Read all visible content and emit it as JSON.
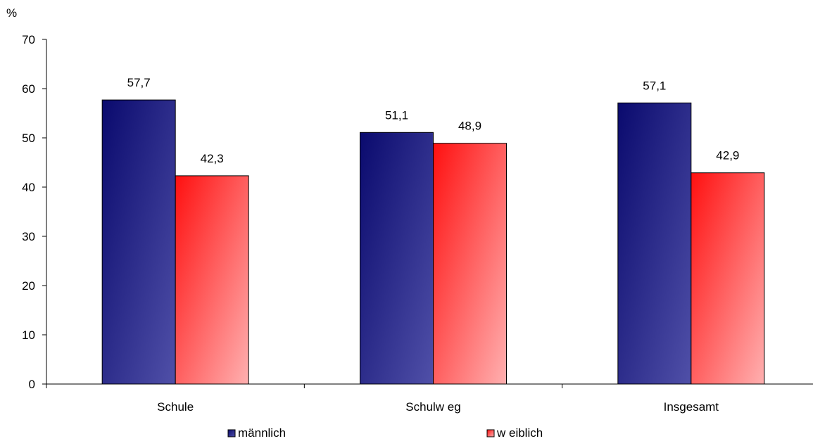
{
  "chart_data": {
    "type": "bar",
    "unit_label": "%",
    "categories": [
      "Schule",
      "Schulw eg",
      "Insgesamt"
    ],
    "series": [
      {
        "name": "männlich",
        "values": [
          57.7,
          51.1,
          57.1
        ],
        "labels": [
          "57,7",
          "51,1",
          "57,1"
        ],
        "color_start": "#0a0a6e",
        "color_end": "#5050a8"
      },
      {
        "name": "w eiblich",
        "values": [
          42.3,
          48.9,
          42.9
        ],
        "labels": [
          "42,3",
          "48,9",
          "42,9"
        ],
        "color_start": "#ff1010",
        "color_end": "#ffb0b0"
      }
    ],
    "yticks": [
      "0",
      "10",
      "20",
      "30",
      "40",
      "50",
      "60",
      "70"
    ],
    "ylim": [
      0,
      70
    ],
    "grid": false,
    "legend_position": "bottom",
    "xlabel": "",
    "ylabel": ""
  }
}
